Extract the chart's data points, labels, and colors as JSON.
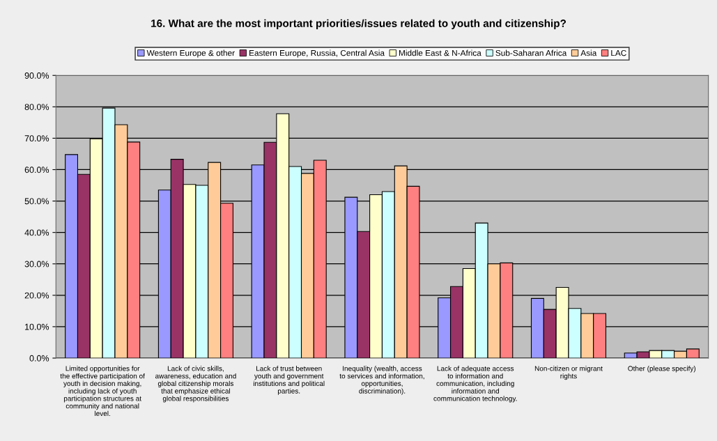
{
  "chart_data": {
    "type": "bar",
    "title": "16. What are the most important priorities/issues related to youth and citizenship?",
    "categories": [
      "Limited opportunities for\nthe effective participation of\nyouth in decision making,\nincluding lack of youth\nparticipation structures at\ncommunity and national\nlevel.",
      "Lack of civic skills,\nawareness, education and\nglobal citizenship morals\nthat emphasize ethical\nglobal responsibilities",
      "Lack of trust between\nyouth and government\ninstitutions and political\nparties.",
      "Inequality (wealth, access\nto services and information,\nopportunities,\ndiscrimination).",
      "Lack of adequate access\nto information and\ncommunication, including\ninformation and\ncommunication technology.",
      "Non-citizen or migrant\nrights",
      "Other (please specify)"
    ],
    "series": [
      {
        "name": "Western Europe & other",
        "color": "#9999ff",
        "values": [
          64.8,
          53.5,
          61.5,
          51.2,
          19.2,
          19.0,
          1.6
        ]
      },
      {
        "name": "Eastern Europe, Russia, Central Asia",
        "color": "#993366",
        "values": [
          58.5,
          63.3,
          68.7,
          40.3,
          22.8,
          15.5,
          2.0
        ]
      },
      {
        "name": "Middle East & N-Africa",
        "color": "#ffffcc",
        "values": [
          69.8,
          55.3,
          77.8,
          52.0,
          28.5,
          22.5,
          2.4
        ]
      },
      {
        "name": "Sub-Saharan Africa",
        "color": "#ccffff",
        "values": [
          79.6,
          55.0,
          61.0,
          53.0,
          43.0,
          15.8,
          2.4
        ]
      },
      {
        "name": "Asia",
        "color": "#ffcc99",
        "values": [
          74.3,
          62.3,
          58.8,
          61.2,
          30.0,
          14.2,
          2.2
        ]
      },
      {
        "name": "LAC",
        "color": "#ff8080",
        "values": [
          68.8,
          49.3,
          63.0,
          54.7,
          30.3,
          14.2,
          2.9
        ]
      }
    ],
    "ylim": [
      0,
      90
    ],
    "yticks": [
      {
        "value": 0,
        "label": "0.0%"
      },
      {
        "value": 10,
        "label": "10.0%"
      },
      {
        "value": 20,
        "label": "20.0%"
      },
      {
        "value": 30,
        "label": "30.0%"
      },
      {
        "value": 40,
        "label": "40.0%"
      },
      {
        "value": 50,
        "label": "50.0%"
      },
      {
        "value": 60,
        "label": "60.0%"
      },
      {
        "value": 70,
        "label": "70.0%"
      },
      {
        "value": 80,
        "label": "80.0%"
      },
      {
        "value": 90,
        "label": "90.0%"
      }
    ],
    "grid": "y",
    "legend": "top"
  }
}
